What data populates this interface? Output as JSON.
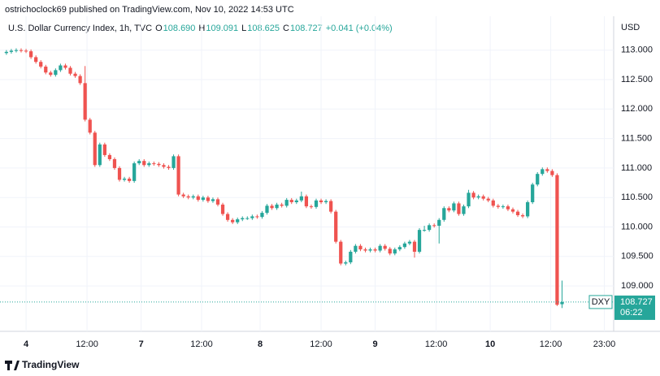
{
  "header": "ostrichoclock69 published on TradingView.com, Nov 10, 2022 14:53 UTC",
  "footer": "TradingView",
  "chart_data": {
    "type": "candlestick",
    "title": "U.S. Dollar Currency Index, 1h, TVC",
    "ohlc_legend": [
      {
        "key": "O",
        "text": "108.690"
      },
      {
        "key": "H",
        "text": "109.091"
      },
      {
        "key": "L",
        "text": "108.625"
      },
      {
        "key": "C",
        "text": "108.727"
      }
    ],
    "change": "+0.041 (+0.04%)",
    "currency": "USD",
    "symbol": "DXY",
    "last_price": {
      "value": 108.727,
      "label": "108.727"
    },
    "countdown": "06:22",
    "up_color": "#26a69a",
    "down_color": "#ef5350",
    "grid": true,
    "ylim": [
      108.23,
      113.23
    ],
    "yticks": [
      {
        "value": 109,
        "label": "109.000"
      },
      {
        "value": 109.5,
        "label": "109.500"
      },
      {
        "value": 110,
        "label": "110.000"
      },
      {
        "value": 110.5,
        "label": "110.500"
      },
      {
        "value": 111,
        "label": "111.000"
      },
      {
        "value": 111.5,
        "label": "111.500"
      },
      {
        "value": 112,
        "label": "112.000"
      },
      {
        "value": 112.5,
        "label": "112.500"
      },
      {
        "value": 113,
        "label": "113.000"
      }
    ],
    "xlim": [
      -1.3,
      123.5
    ],
    "xticks": [
      {
        "value": 4,
        "label": "4"
      },
      {
        "value": 16.4,
        "label": "12:00"
      },
      {
        "value": 27.4,
        "label": "7"
      },
      {
        "value": 39.7,
        "label": "12:00"
      },
      {
        "value": 51.6,
        "label": "8"
      },
      {
        "value": 64,
        "label": "12:00"
      },
      {
        "value": 75,
        "label": "9"
      },
      {
        "value": 87.4,
        "label": "12:00"
      },
      {
        "value": 98.4,
        "label": "10"
      },
      {
        "value": 110.7,
        "label": "12:00"
      },
      {
        "value": 121.6,
        "label": "23:00"
      }
    ],
    "open": [
      112.95,
      112.97,
      112.99,
      113.0,
      112.99,
      112.98,
      112.88,
      112.8,
      112.72,
      112.62,
      112.58,
      112.66,
      112.74,
      112.7,
      112.6,
      112.56,
      112.44,
      111.82,
      111.6,
      111.05,
      111.4,
      111.22,
      111.15,
      111.0,
      110.8,
      110.82,
      110.78,
      111.08,
      111.12,
      111.05,
      111.08,
      111.07,
      111.05,
      111.02,
      111.0,
      111.2,
      110.55,
      110.52,
      110.5,
      110.52,
      110.46,
      110.5,
      110.44,
      110.47,
      110.38,
      110.22,
      110.12,
      110.08,
      110.13,
      110.15,
      110.15,
      110.18,
      110.17,
      110.24,
      110.36,
      110.32,
      110.38,
      110.36,
      110.46,
      110.42,
      110.45,
      110.52,
      110.35,
      110.34,
      110.45,
      110.42,
      110.44,
      110.26,
      109.75,
      109.38,
      109.4,
      109.58,
      109.68,
      109.62,
      109.6,
      109.62,
      109.6,
      109.68,
      109.63,
      109.55,
      109.62,
      109.66,
      109.72,
      109.75,
      109.58,
      109.95,
      109.95,
      110.03,
      110.02,
      110.12,
      110.32,
      110.28,
      110.4,
      110.22,
      110.35,
      110.58,
      110.5,
      110.52,
      110.48,
      110.45,
      110.36,
      110.34,
      110.35,
      110.3,
      110.26,
      110.2,
      110.18,
      110.42,
      110.72,
      110.9,
      110.98,
      110.95,
      110.88,
      108.69
    ],
    "high": [
      113.0,
      113.02,
      113.03,
      113.03,
      113.02,
      113.01,
      112.91,
      112.83,
      112.75,
      112.65,
      112.69,
      112.77,
      112.77,
      112.73,
      112.63,
      112.59,
      112.73,
      111.85,
      111.63,
      111.43,
      111.43,
      111.25,
      111.18,
      111.03,
      110.85,
      110.85,
      111.11,
      111.15,
      111.15,
      111.11,
      111.11,
      111.1,
      111.08,
      111.05,
      111.23,
      111.23,
      110.58,
      110.55,
      110.55,
      110.55,
      110.53,
      110.53,
      110.5,
      110.5,
      110.41,
      110.25,
      110.15,
      110.16,
      110.18,
      110.18,
      110.21,
      110.21,
      110.27,
      110.39,
      110.39,
      110.41,
      110.41,
      110.49,
      110.49,
      110.48,
      110.6,
      110.55,
      110.38,
      110.48,
      110.48,
      110.47,
      110.47,
      110.29,
      109.78,
      109.43,
      109.61,
      109.71,
      109.71,
      109.65,
      109.65,
      109.65,
      109.71,
      109.71,
      109.66,
      109.65,
      109.69,
      109.75,
      109.78,
      109.78,
      109.98,
      110.02,
      110.06,
      110.06,
      110.15,
      110.35,
      110.35,
      110.43,
      110.43,
      110.38,
      110.63,
      110.61,
      110.55,
      110.55,
      110.51,
      110.48,
      110.39,
      110.38,
      110.38,
      110.33,
      110.29,
      110.23,
      110.45,
      110.75,
      110.93,
      111.01,
      111.01,
      110.98,
      110.91,
      109.091
    ],
    "low": [
      112.92,
      112.94,
      112.96,
      112.96,
      112.95,
      112.85,
      112.77,
      112.69,
      112.59,
      112.55,
      112.55,
      112.63,
      112.67,
      112.57,
      112.53,
      112.41,
      111.79,
      111.57,
      111.02,
      111.02,
      111.19,
      111.12,
      110.97,
      110.77,
      110.77,
      110.75,
      110.75,
      111.05,
      111.02,
      111.02,
      111.04,
      111.02,
      110.99,
      110.97,
      110.97,
      110.52,
      110.49,
      110.47,
      110.47,
      110.43,
      110.43,
      110.41,
      110.41,
      110.35,
      110.19,
      110.09,
      110.05,
      110.05,
      110.1,
      110.12,
      110.12,
      110.14,
      110.14,
      110.21,
      110.29,
      110.29,
      110.33,
      110.33,
      110.39,
      110.39,
      110.42,
      110.32,
      110.31,
      110.31,
      110.39,
      110.39,
      110.23,
      109.72,
      109.35,
      109.35,
      109.37,
      109.55,
      109.59,
      109.57,
      109.57,
      109.57,
      109.57,
      109.6,
      109.52,
      109.52,
      109.59,
      109.63,
      109.69,
      109.48,
      109.55,
      109.92,
      109.92,
      109.99,
      109.72,
      110.09,
      110.25,
      110.25,
      110.19,
      110.19,
      110.32,
      110.47,
      110.47,
      110.45,
      110.42,
      110.33,
      110.31,
      110.31,
      110.27,
      110.23,
      110.17,
      110.15,
      110.15,
      110.39,
      110.69,
      110.87,
      110.92,
      110.85,
      108.66,
      108.625
    ],
    "close": [
      112.97,
      112.99,
      113.0,
      112.99,
      112.98,
      112.88,
      112.8,
      112.72,
      112.62,
      112.58,
      112.66,
      112.74,
      112.7,
      112.6,
      112.56,
      112.44,
      111.82,
      111.6,
      111.05,
      111.4,
      111.22,
      111.15,
      111.0,
      110.8,
      110.82,
      110.78,
      111.08,
      111.12,
      111.05,
      111.08,
      111.07,
      111.05,
      111.02,
      111.0,
      111.2,
      110.55,
      110.52,
      110.5,
      110.52,
      110.46,
      110.5,
      110.44,
      110.47,
      110.38,
      110.22,
      110.12,
      110.08,
      110.13,
      110.15,
      110.15,
      110.18,
      110.17,
      110.24,
      110.36,
      110.32,
      110.38,
      110.36,
      110.46,
      110.42,
      110.45,
      110.52,
      110.35,
      110.34,
      110.45,
      110.42,
      110.44,
      110.26,
      109.75,
      109.38,
      109.4,
      109.58,
      109.68,
      109.62,
      109.6,
      109.62,
      109.6,
      109.68,
      109.63,
      109.55,
      109.62,
      109.66,
      109.72,
      109.75,
      109.58,
      109.95,
      109.95,
      110.03,
      110.02,
      110.12,
      110.32,
      110.28,
      110.4,
      110.22,
      110.35,
      110.58,
      110.5,
      110.52,
      110.48,
      110.45,
      110.36,
      110.34,
      110.35,
      110.3,
      110.26,
      110.2,
      110.18,
      110.42,
      110.72,
      110.9,
      110.98,
      110.95,
      110.88,
      108.68,
      108.727
    ]
  }
}
